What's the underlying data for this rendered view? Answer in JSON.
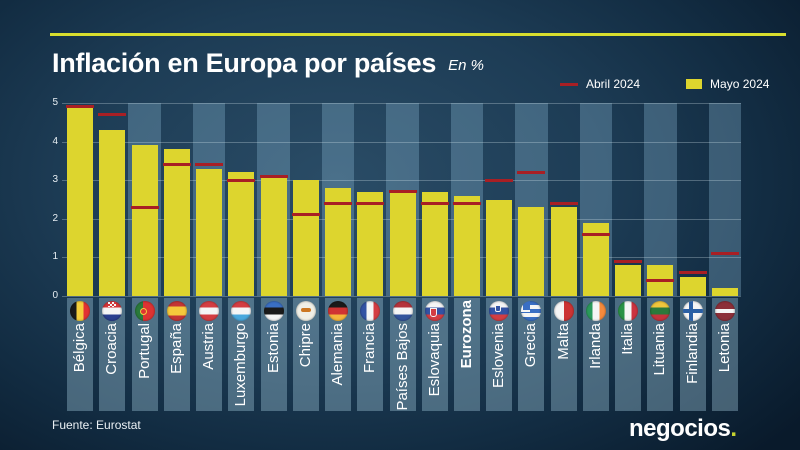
{
  "header": {
    "title": "Inflación en Europa por países",
    "subtitle": "En %"
  },
  "legend": {
    "april_label": "Abril 2024",
    "april_color": "#a81f24",
    "may_label": "Mayo 2024",
    "may_color": "#ddd52e"
  },
  "source": "Fuente: Eurostat",
  "brand": {
    "name": "negocios",
    "dot": ".",
    "dot_color": "#c6d32f"
  },
  "chart_data": {
    "type": "bar",
    "title": "Inflación en Europa por países",
    "unit": "En %",
    "ylim": [
      0,
      5
    ],
    "yticks": [
      0,
      1,
      2,
      3,
      4,
      5
    ],
    "grid": true,
    "legend_position": "top-right",
    "highlight_category": "Eurozona",
    "categories": [
      "Bélgica",
      "Croacia",
      "Portugal",
      "España",
      "Austria",
      "Luxemburgo",
      "Estonia",
      "Chipre",
      "Alemania",
      "Francia",
      "Países Bajos",
      "Eslovaquia",
      "Eurozona",
      "Eslovenia",
      "Grecia",
      "Malta",
      "Irlanda",
      "Italia",
      "Lituania",
      "Finlandia",
      "Letonia"
    ],
    "series": [
      {
        "name": "Mayo 2024",
        "style": "bar",
        "color": "#ddd52e",
        "values": [
          4.9,
          4.3,
          3.9,
          3.8,
          3.3,
          3.2,
          3.1,
          3.0,
          2.8,
          2.7,
          2.7,
          2.7,
          2.6,
          2.5,
          2.3,
          2.3,
          1.9,
          0.8,
          0.8,
          0.5,
          0.2
        ]
      },
      {
        "name": "Abril 2024",
        "style": "dash",
        "color": "#a81f24",
        "values": [
          4.9,
          4.7,
          2.3,
          3.4,
          3.4,
          3.0,
          3.1,
          2.1,
          2.4,
          2.4,
          2.7,
          2.4,
          2.4,
          3.0,
          3.2,
          2.4,
          1.6,
          0.9,
          0.4,
          0.6,
          1.1
        ]
      }
    ]
  },
  "flags": [
    {
      "dir": "v",
      "colors": [
        "#1a1a1a",
        "#f5cf3c",
        "#e23333"
      ],
      "overlay": "none"
    },
    {
      "dir": "h",
      "colors": [
        "#d43438",
        "#f5f5f5",
        "#2a3f8f"
      ],
      "overlay": "checker"
    },
    {
      "dir": "v",
      "colors": [
        "#2a7a3b",
        "#dd3333"
      ],
      "weights": [
        40,
        60
      ],
      "overlay": "ring"
    },
    {
      "dir": "h",
      "colors": [
        "#c43535",
        "#f5c93c",
        "#c43535"
      ],
      "weights": [
        28,
        44,
        28
      ],
      "overlay": "none"
    },
    {
      "dir": "h",
      "colors": [
        "#d43d42",
        "#f5f5f5",
        "#d43d42"
      ],
      "overlay": "none"
    },
    {
      "dir": "h",
      "colors": [
        "#d43d42",
        "#f5f5f5",
        "#4aa8dd"
      ],
      "overlay": "none"
    },
    {
      "dir": "h",
      "colors": [
        "#3a6fc4",
        "#1a1a1a",
        "#f5f5f5"
      ],
      "overlay": "none"
    },
    {
      "dir": "h",
      "colors": [
        "#f0efe6"
      ],
      "overlay": "cyprus"
    },
    {
      "dir": "h",
      "colors": [
        "#1a1a1a",
        "#d03333",
        "#f5b53c"
      ],
      "overlay": "none"
    },
    {
      "dir": "v",
      "colors": [
        "#3353a4",
        "#f5f5f5",
        "#d43d42"
      ],
      "overlay": "none"
    },
    {
      "dir": "h",
      "colors": [
        "#b5333c",
        "#f5f5f5",
        "#33549c"
      ],
      "overlay": "none"
    },
    {
      "dir": "h",
      "colors": [
        "#f5f5f5",
        "#3353a4",
        "#d43d42"
      ],
      "overlay": "crest"
    },
    null,
    {
      "dir": "h",
      "colors": [
        "#f5f5f5",
        "#3353a4",
        "#d43d42"
      ],
      "overlay": "crest-small"
    },
    {
      "dir": "h",
      "colors": [
        "#3a6fc4",
        "#f5f5f5",
        "#3a6fc4",
        "#f5f5f5",
        "#3a6fc4"
      ],
      "overlay": "greek-canton"
    },
    {
      "dir": "v",
      "colors": [
        "#f5f5f5",
        "#cc3333"
      ],
      "overlay": "none"
    },
    {
      "dir": "v",
      "colors": [
        "#2a9a5b",
        "#f5f5f5",
        "#f58a3c"
      ],
      "overlay": "none"
    },
    {
      "dir": "v",
      "colors": [
        "#2a9246",
        "#f5f5f5",
        "#cc3340"
      ],
      "overlay": "none"
    },
    {
      "dir": "h",
      "colors": [
        "#f0c63c",
        "#2a7a3b",
        "#c4333c"
      ],
      "overlay": "none"
    },
    {
      "dir": "h",
      "colors": [
        "#f5f5f5"
      ],
      "overlay": "nordic-cross"
    },
    {
      "dir": "h",
      "colors": [
        "#8c2f39",
        "#f5f5f5",
        "#8c2f39"
      ],
      "weights": [
        40,
        20,
        40
      ],
      "overlay": "none"
    }
  ]
}
